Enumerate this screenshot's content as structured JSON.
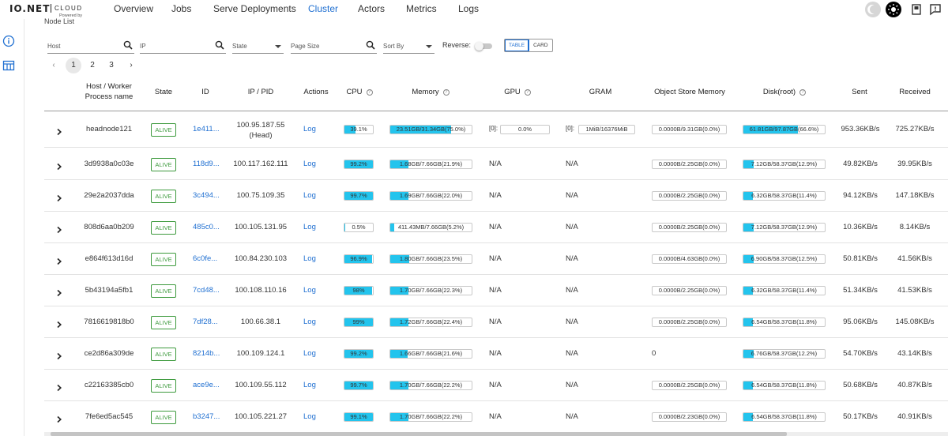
{
  "app": {
    "logo_text": "IO.NET",
    "logo_sub": "CLOUD",
    "logo_powered": "Powered by"
  },
  "nav": [
    "Overview",
    "Jobs",
    "Serve Deployments",
    "Cluster",
    "Actors",
    "Metrics",
    "Logs"
  ],
  "nav_active": "Cluster",
  "section_title": "Node List",
  "filters": {
    "host": "Host",
    "ip": "IP",
    "state": "State",
    "page_size": "Page Size",
    "sort_by": "Sort By",
    "reverse": "Reverse:"
  },
  "view_toggle": {
    "table": "TABLE",
    "card": "CARD"
  },
  "pagination": {
    "pages": [
      "1",
      "2",
      "3"
    ],
    "current": "1"
  },
  "columns": {
    "host": "Host / Worker",
    "host2": "Process name",
    "state": "State",
    "id": "ID",
    "ip": "IP / PID",
    "actions": "Actions",
    "cpu": "CPU",
    "memory": "Memory",
    "gpu": "GPU",
    "gram": "GRAM",
    "osm": "Object Store Memory",
    "disk": "Disk(root)",
    "sent": "Sent",
    "received": "Received"
  },
  "rows": [
    {
      "host": "headnode121",
      "state": "ALIVE",
      "id": "1e411...",
      "ip": "100.95.187.55",
      "ip_note": "(Head)",
      "action": "Log",
      "cpu": "39.1%",
      "cpu_pct": 39.1,
      "mem": "23.51GB/31.34GB(75.0%)",
      "mem_pct": 75.0,
      "gpu_label": "[0]:",
      "gpu": "0.0%",
      "gpu_pct": 0,
      "gram_label": "[0]:",
      "gram": "1MiB/16376MiB",
      "osm": "0.0000B/9.31GB(0.0%)",
      "disk": "61.81GB/97.87GB(66.6%)",
      "disk_pct": 66.6,
      "sent": "953.36KB/s",
      "received": "725.27KB/s"
    },
    {
      "host": "3d9938a0c03e",
      "state": "ALIVE",
      "id": "118d9...",
      "ip": "100.117.162.111",
      "ip_note": "",
      "action": "Log",
      "cpu": "99.2%",
      "cpu_pct": 99.2,
      "mem": "1.68GB/7.66GB(21.9%)",
      "mem_pct": 21.9,
      "gpu": "N/A",
      "gram": "N/A",
      "osm": "0.0000B/2.25GB(0.0%)",
      "disk": "7.12GB/58.37GB(12.9%)",
      "disk_pct": 12.9,
      "sent": "49.82KB/s",
      "received": "39.95KB/s"
    },
    {
      "host": "29e2a2037dda",
      "state": "ALIVE",
      "id": "3c494...",
      "ip": "100.75.109.35",
      "ip_note": "",
      "action": "Log",
      "cpu": "99.7%",
      "cpu_pct": 99.7,
      "mem": "1.69GB/7.66GB(22.0%)",
      "mem_pct": 22.0,
      "gpu": "N/A",
      "gram": "N/A",
      "osm": "0.0000B/2.25GB(0.0%)",
      "disk": "6.32GB/58.37GB(11.4%)",
      "disk_pct": 11.4,
      "sent": "94.12KB/s",
      "received": "147.18KB/s"
    },
    {
      "host": "808d6aa0b209",
      "state": "ALIVE",
      "id": "485c0...",
      "ip": "100.105.131.95",
      "ip_note": "",
      "action": "Log",
      "cpu": "0.5%",
      "cpu_pct": 0.5,
      "mem": "411.43MB/7.66GB(5.2%)",
      "mem_pct": 5.2,
      "gpu": "N/A",
      "gram": "N/A",
      "osm": "0.0000B/2.25GB(0.0%)",
      "disk": "7.12GB/58.37GB(12.9%)",
      "disk_pct": 12.9,
      "sent": "10.36KB/s",
      "received": "8.14KB/s"
    },
    {
      "host": "e864f613d16d",
      "state": "ALIVE",
      "id": "6c0fe...",
      "ip": "100.84.230.103",
      "ip_note": "",
      "action": "Log",
      "cpu": "96.9%",
      "cpu_pct": 96.9,
      "mem": "1.80GB/7.66GB(23.5%)",
      "mem_pct": 23.5,
      "gpu": "N/A",
      "gram": "N/A",
      "osm": "0.0000B/4.63GB(0.0%)",
      "disk": "6.90GB/58.37GB(12.5%)",
      "disk_pct": 12.5,
      "sent": "50.81KB/s",
      "received": "41.56KB/s"
    },
    {
      "host": "5b43194a5fb1",
      "state": "ALIVE",
      "id": "7cd48...",
      "ip": "100.108.110.16",
      "ip_note": "",
      "action": "Log",
      "cpu": "98%",
      "cpu_pct": 98,
      "mem": "1.70GB/7.66GB(22.3%)",
      "mem_pct": 22.3,
      "gpu": "N/A",
      "gram": "N/A",
      "osm": "0.0000B/2.25GB(0.0%)",
      "disk": "6.32GB/58.37GB(11.4%)",
      "disk_pct": 11.4,
      "sent": "51.34KB/s",
      "received": "41.53KB/s"
    },
    {
      "host": "7816619818b0",
      "state": "ALIVE",
      "id": "7df28...",
      "ip": "100.66.38.1",
      "ip_note": "",
      "action": "Log",
      "cpu": "99%",
      "cpu_pct": 99,
      "mem": "1.72GB/7.66GB(22.4%)",
      "mem_pct": 22.4,
      "gpu": "N/A",
      "gram": "N/A",
      "osm": "0.0000B/2.25GB(0.0%)",
      "disk": "6.54GB/58.37GB(11.8%)",
      "disk_pct": 11.8,
      "sent": "95.06KB/s",
      "received": "145.08KB/s"
    },
    {
      "host": "ce2d86a309de",
      "state": "ALIVE",
      "id": "8214b...",
      "ip": "100.109.124.1",
      "ip_note": "",
      "action": "Log",
      "cpu": "99.2%",
      "cpu_pct": 99.2,
      "mem": "1.66GB/7.66GB(21.6%)",
      "mem_pct": 21.6,
      "gpu": "N/A",
      "gram": "N/A",
      "osm_plain": "0",
      "disk": "6.76GB/58.37GB(12.2%)",
      "disk_pct": 12.2,
      "sent": "54.70KB/s",
      "received": "43.14KB/s"
    },
    {
      "host": "c22163385cb0",
      "state": "ALIVE",
      "id": "ace9e...",
      "ip": "100.109.55.112",
      "ip_note": "",
      "action": "Log",
      "cpu": "99.7%",
      "cpu_pct": 99.7,
      "mem": "1.70GB/7.66GB(22.2%)",
      "mem_pct": 22.2,
      "gpu": "N/A",
      "gram": "N/A",
      "osm": "0.0000B/2.25GB(0.0%)",
      "disk": "6.54GB/58.37GB(11.8%)",
      "disk_pct": 11.8,
      "sent": "50.68KB/s",
      "received": "40.87KB/s"
    },
    {
      "host": "7fe6ed5ac545",
      "state": "ALIVE",
      "id": "b3247...",
      "ip": "100.105.221.27",
      "ip_note": "",
      "action": "Log",
      "cpu": "99.1%",
      "cpu_pct": 99.1,
      "mem": "1.70GB/7.66GB(22.2%)",
      "mem_pct": 22.2,
      "gpu": "N/A",
      "gram": "N/A",
      "osm": "0.0000B/2.23GB(0.0%)",
      "disk": "6.54GB/58.37GB(11.8%)",
      "disk_pct": 11.8,
      "sent": "50.17KB/s",
      "received": "40.91KB/s"
    }
  ],
  "colors": {
    "accent": "#1f6fd1",
    "alive": "#3d9a3d",
    "bar_fill": "#23c4ed"
  }
}
